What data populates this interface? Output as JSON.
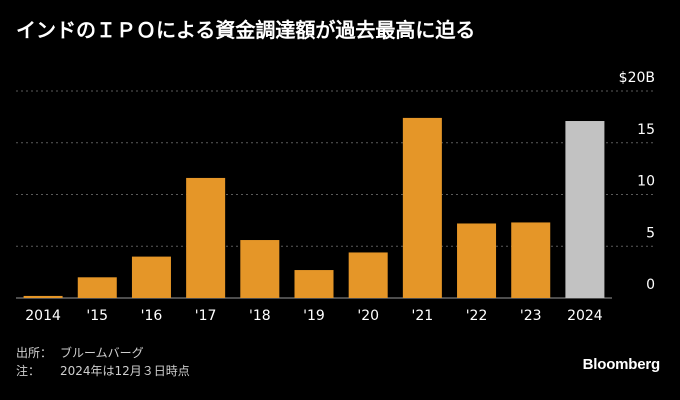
{
  "chart_data": {
    "type": "bar",
    "title": "インドのＩＰＯによる資金調達額が過去最高に迫る",
    "xlabel": "",
    "ylabel": "",
    "y_unit_label": "$20B",
    "categories": [
      "2014",
      "'15",
      "'16",
      "'17",
      "'18",
      "'19",
      "'20",
      "'21",
      "'22",
      "'23",
      "2024"
    ],
    "values": [
      0.2,
      2.0,
      4.0,
      11.6,
      5.6,
      2.7,
      4.4,
      17.4,
      7.2,
      7.3,
      17.1
    ],
    "bar_colors": [
      "#e59628",
      "#e59628",
      "#e59628",
      "#e59628",
      "#e59628",
      "#e59628",
      "#e59628",
      "#e59628",
      "#e59628",
      "#e59628",
      "#c2c2c2"
    ],
    "ylim": [
      0,
      20
    ],
    "yticks": [
      0,
      5,
      10,
      15,
      20
    ],
    "ytick_labels": [
      "0",
      "5",
      "10",
      "15",
      "$20B"
    ],
    "grid": true,
    "y_axis_side": "right"
  },
  "footer": {
    "source_key": "出所：",
    "source_value": "ブルームバーグ",
    "note_key": "注：",
    "note_value": "2024年は12月３日時点"
  },
  "brand": "Bloomberg",
  "colors": {
    "background": "#000000",
    "bar": "#e59628",
    "bar_highlight": "#c2c2c2",
    "grid": "#5a5a5a",
    "text": "#ffffff"
  }
}
